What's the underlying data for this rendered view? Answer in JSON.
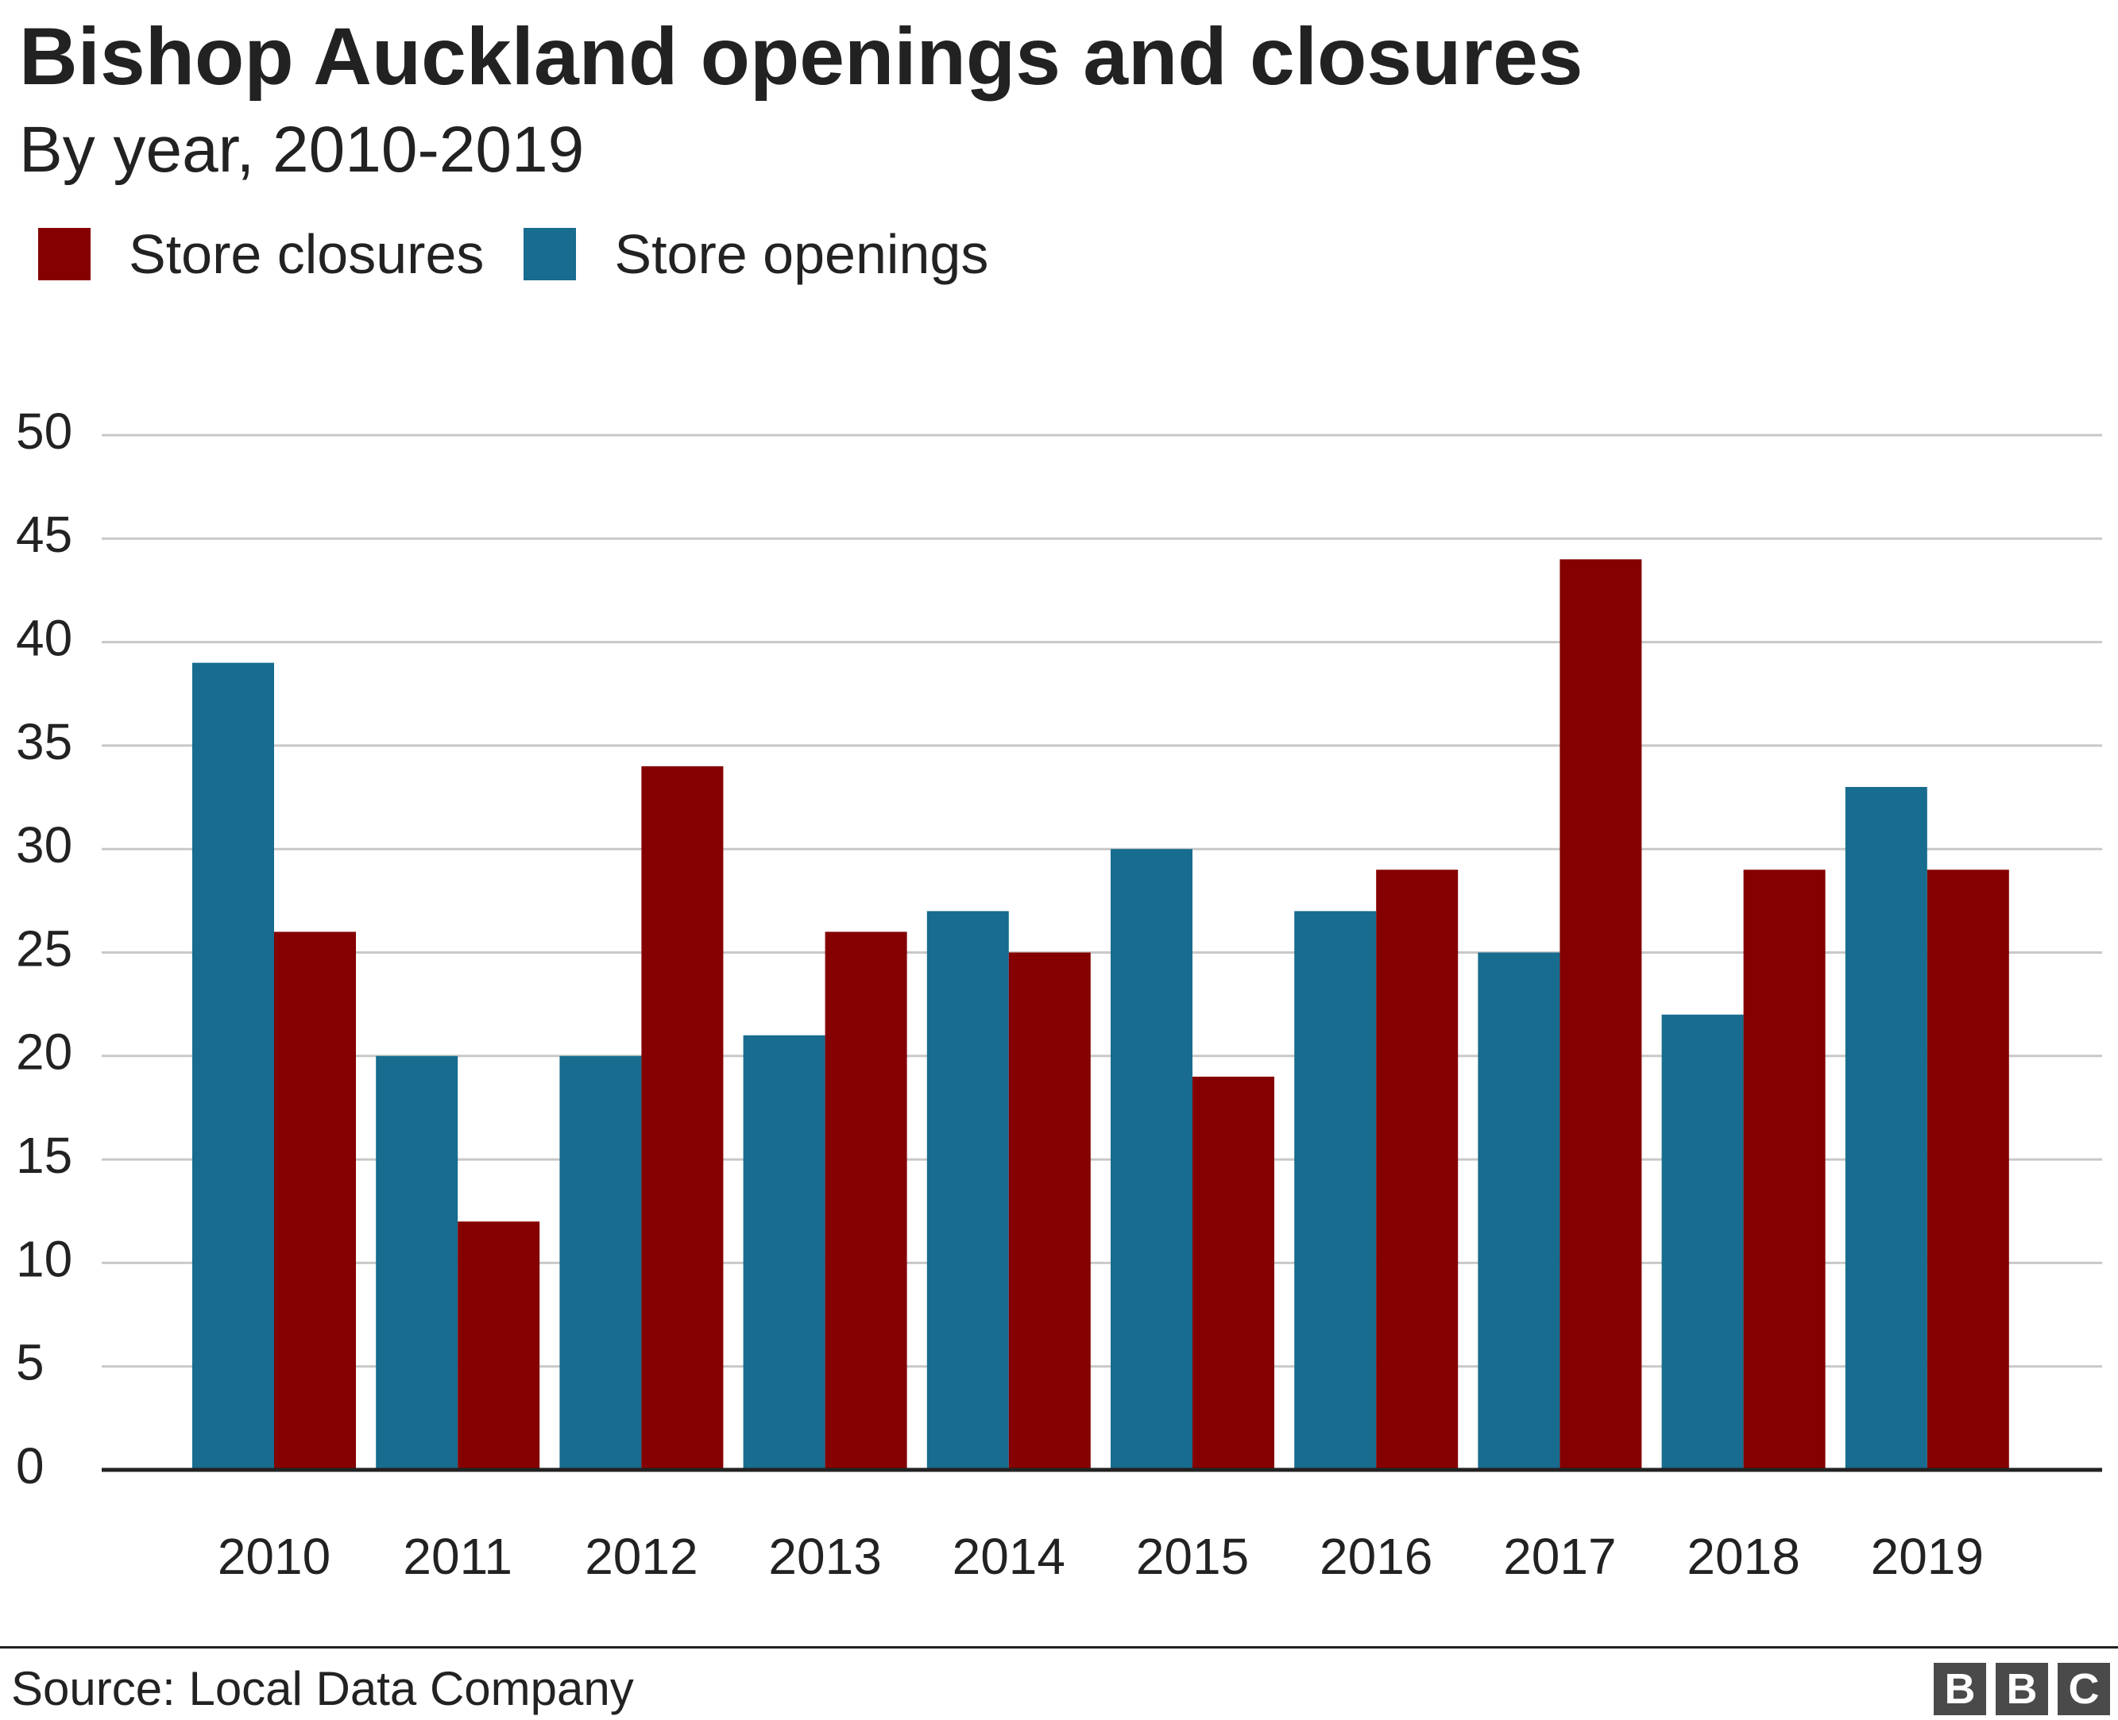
{
  "chart_data": {
    "type": "bar",
    "title": "Bishop Auckland openings and closures",
    "subtitle": "By year, 2010-2019",
    "xlabel": "",
    "ylabel": "",
    "ylim": [
      0,
      50
    ],
    "yticks": [
      "0",
      "5",
      "10",
      "15",
      "20",
      "25",
      "30",
      "35",
      "40",
      "45",
      "50"
    ],
    "categories": [
      "2010",
      "2011",
      "2012",
      "2013",
      "2014",
      "2015",
      "2016",
      "2017",
      "2018",
      "2019"
    ],
    "series": [
      {
        "name": "Store openings",
        "color": "#176c8f",
        "values": [
          39,
          20,
          20,
          21,
          27,
          30,
          27,
          25,
          22,
          33
        ]
      },
      {
        "name": "Store closures",
        "color": "#850000",
        "values": [
          26,
          12,
          34,
          26,
          25,
          19,
          29,
          44,
          29,
          29
        ]
      }
    ],
    "legend": {
      "placement": "top-left",
      "items": [
        {
          "label": "Store closures",
          "color": "#850000"
        },
        {
          "label": "Store openings",
          "color": "#176c8f"
        }
      ]
    },
    "grid": true,
    "source": "Source: Local Data Company"
  },
  "branding": {
    "logo_letters": [
      "B",
      "B",
      "C"
    ],
    "logo_color": "#4a4a4a"
  }
}
